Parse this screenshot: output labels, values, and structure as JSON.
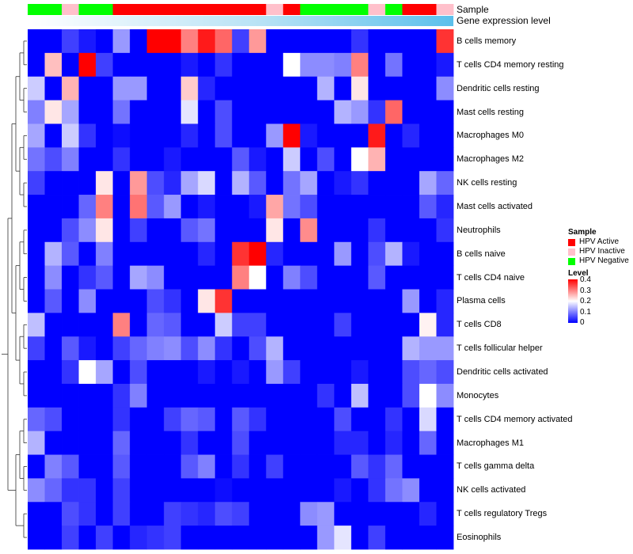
{
  "chart_data": {
    "type": "heatmap",
    "annotations": [
      {
        "name": "Sample",
        "values": [
          "HPV Negative",
          "HPV Negative",
          "HPV Inactive",
          "HPV Negative",
          "HPV Negative",
          "HPV Active",
          "HPV Active",
          "HPV Active",
          "HPV Active",
          "HPV Active",
          "HPV Active",
          "HPV Active",
          "HPV Active",
          "HPV Active",
          "HPV Inactive",
          "HPV Active",
          "HPV Negative",
          "HPV Negative",
          "HPV Negative",
          "HPV Negative",
          "HPV Inactive",
          "HPV Negative",
          "HPV Active",
          "HPV Active",
          "HPV Inactive"
        ]
      },
      {
        "name": "Gene expression level"
      }
    ],
    "rows": [
      "B cells memory",
      "T cells CD4 memory resting",
      "Dendritic cells resting",
      "Mast cells resting",
      "Macrophages M0",
      "Macrophages M2",
      "NK cells resting",
      "Mast cells activated",
      "Neutrophils",
      "B cells naive",
      "T cells CD4 naive",
      "Plasma cells",
      "T cells CD8",
      "T cells follicular helper",
      "Dendritic cells activated",
      "Monocytes",
      "T cells CD4 memory activated",
      "Macrophages M1",
      "T cells gamma delta",
      "NK cells activated",
      "T cells regulatory  Tregs",
      "Eosinophils"
    ],
    "values": [
      [
        0,
        0,
        0.05,
        0.02,
        0,
        0.12,
        0,
        0.4,
        0.4,
        0.3,
        0.38,
        0.32,
        0.05,
        0.28,
        0,
        0,
        0,
        0,
        0,
        0.04,
        0,
        0,
        0,
        0,
        0.36
      ],
      [
        0,
        0.25,
        0,
        0.4,
        0.05,
        0,
        0,
        0,
        0,
        0.02,
        0,
        0.04,
        0,
        0,
        0,
        0.2,
        0.11,
        0.11,
        0.1,
        0.3,
        0,
        0.09,
        0,
        0,
        0.02
      ],
      [
        0.16,
        0,
        0.26,
        0,
        0,
        0.12,
        0.12,
        0,
        0,
        0.24,
        0.03,
        0,
        0,
        0,
        0,
        0,
        0,
        0.14,
        0,
        0.22,
        0,
        0,
        0,
        0,
        0.11
      ],
      [
        0.1,
        0.22,
        0.13,
        0,
        0,
        0.09,
        0,
        0,
        0,
        0.18,
        0,
        0.06,
        0,
        0,
        0,
        0,
        0,
        0,
        0.14,
        0.12,
        0.04,
        0.32,
        0,
        0,
        0
      ],
      [
        0.13,
        0,
        0.16,
        0.04,
        0,
        0.01,
        0,
        0,
        0,
        0.03,
        0,
        0.06,
        0,
        0,
        0.12,
        0.4,
        0.02,
        0,
        0,
        0,
        0.38,
        0,
        0.03,
        0,
        0
      ],
      [
        0.09,
        0.06,
        0.1,
        0,
        0,
        0.04,
        0,
        0,
        0.02,
        0,
        0,
        0,
        0.07,
        0.02,
        0,
        0.16,
        0,
        0.06,
        0,
        0.2,
        0.26,
        0,
        0,
        0,
        0
      ],
      [
        0.05,
        0,
        0,
        0,
        0.22,
        0,
        0.28,
        0.06,
        0.03,
        0.13,
        0.17,
        0,
        0.14,
        0.07,
        0,
        0.09,
        0.13,
        0,
        0.02,
        0.04,
        0,
        0,
        0,
        0.13,
        0.08
      ],
      [
        0,
        0,
        0,
        0.08,
        0.3,
        0,
        0.31,
        0.07,
        0.12,
        0,
        0.02,
        0,
        0,
        0.02,
        0.27,
        0.09,
        0.06,
        0,
        0,
        0,
        0,
        0,
        0,
        0.07,
        0.03
      ],
      [
        0,
        0,
        0.06,
        0.11,
        0.22,
        0,
        0.05,
        0,
        0,
        0.07,
        0.09,
        0,
        0,
        0,
        0.22,
        0,
        0.29,
        0,
        0,
        0,
        0.04,
        0,
        0,
        0,
        0.04
      ],
      [
        0,
        0.14,
        0.07,
        0,
        0.1,
        0,
        0,
        0,
        0,
        0,
        0.03,
        0,
        0.36,
        0.4,
        0.03,
        0,
        0,
        0,
        0.12,
        0,
        0.06,
        0.14,
        0.02,
        0,
        0
      ],
      [
        0,
        0.11,
        0,
        0.04,
        0.07,
        0,
        0.13,
        0.11,
        0,
        0,
        0,
        0,
        0.3,
        0.2,
        0,
        0.1,
        0.06,
        0,
        0,
        0,
        0.07,
        0,
        0,
        0,
        0
      ],
      [
        0,
        0.07,
        0,
        0.11,
        0,
        0,
        0,
        0.06,
        0.04,
        0,
        0.22,
        0.36,
        0,
        0,
        0,
        0,
        0,
        0,
        0,
        0,
        0,
        0,
        0.12,
        0,
        0.03
      ],
      [
        0.15,
        0,
        0,
        0,
        0,
        0.3,
        0,
        0.08,
        0.07,
        0,
        0,
        0.16,
        0.05,
        0.05,
        0,
        0,
        0,
        0,
        0.05,
        0,
        0,
        0,
        0,
        0.21,
        0.03
      ],
      [
        0.05,
        0,
        0.07,
        0.02,
        0,
        0.05,
        0.08,
        0.1,
        0.11,
        0.06,
        0.11,
        0.04,
        0,
        0.06,
        0.14,
        0,
        0,
        0,
        0,
        0,
        0,
        0,
        0.14,
        0.12,
        0.12
      ],
      [
        0,
        0,
        0.04,
        0.2,
        0.13,
        0,
        0.06,
        0,
        0,
        0,
        0.02,
        0,
        0.02,
        0,
        0.12,
        0.05,
        0,
        0,
        0,
        0.02,
        0,
        0,
        0.06,
        0.08,
        0.06
      ],
      [
        0,
        0,
        0,
        0,
        0,
        0.04,
        0.1,
        0,
        0,
        0,
        0,
        0,
        0,
        0,
        0,
        0,
        0,
        0.04,
        0,
        0.15,
        0,
        0,
        0.06,
        0.2,
        0.11
      ],
      [
        0.08,
        0.06,
        0,
        0,
        0,
        0.04,
        0,
        0,
        0.05,
        0.08,
        0.07,
        0,
        0.07,
        0.04,
        0,
        0,
        0,
        0,
        0.06,
        0,
        0,
        0.04,
        0,
        0.17,
        0
      ],
      [
        0.14,
        0,
        0,
        0,
        0,
        0.08,
        0,
        0,
        0,
        0.04,
        0,
        0,
        0.06,
        0,
        0,
        0,
        0,
        0,
        0.03,
        0.03,
        0,
        0.03,
        0,
        0.08,
        0
      ],
      [
        0,
        0.1,
        0.07,
        0,
        0,
        0.07,
        0,
        0,
        0,
        0.07,
        0.1,
        0,
        0.04,
        0,
        0.05,
        0,
        0,
        0,
        0,
        0.07,
        0.04,
        0.08,
        0,
        0,
        0
      ],
      [
        0.11,
        0.08,
        0.04,
        0.04,
        0,
        0.05,
        0,
        0,
        0,
        0,
        0,
        0.01,
        0,
        0,
        0,
        0,
        0,
        0,
        0.02,
        0,
        0.04,
        0.09,
        0.11,
        0,
        0
      ],
      [
        0,
        0,
        0.06,
        0.04,
        0,
        0.05,
        0,
        0,
        0.05,
        0.04,
        0.03,
        0.06,
        0.05,
        0,
        0,
        0,
        0.11,
        0.12,
        0,
        0,
        0,
        0,
        0,
        0.03,
        0
      ],
      [
        0,
        0,
        0.05,
        0,
        0.05,
        0,
        0.03,
        0.04,
        0.05,
        0,
        0,
        0,
        0,
        0,
        0,
        0,
        0,
        0.12,
        0.18,
        0,
        0.05,
        0,
        0,
        0,
        0
      ]
    ],
    "legend": {
      "title": "Sample",
      "entries": [
        {
          "label": "HPV Active",
          "color": "#ff0000"
        },
        {
          "label": "HPV Inactive",
          "color": "#ffc0cb"
        },
        {
          "label": "HPV Negative",
          "color": "#00ff00"
        }
      ],
      "placement": "right"
    },
    "colorbar": {
      "title": "Level",
      "ticks": [
        0,
        0.1,
        0.2,
        0.3,
        0.4
      ],
      "range": [
        0,
        0.4
      ],
      "colors": [
        "#0000ff",
        "#ffffff",
        "#ff0000"
      ]
    },
    "gene_expression_color": "#5bc0eb",
    "dendrogram": "left"
  }
}
